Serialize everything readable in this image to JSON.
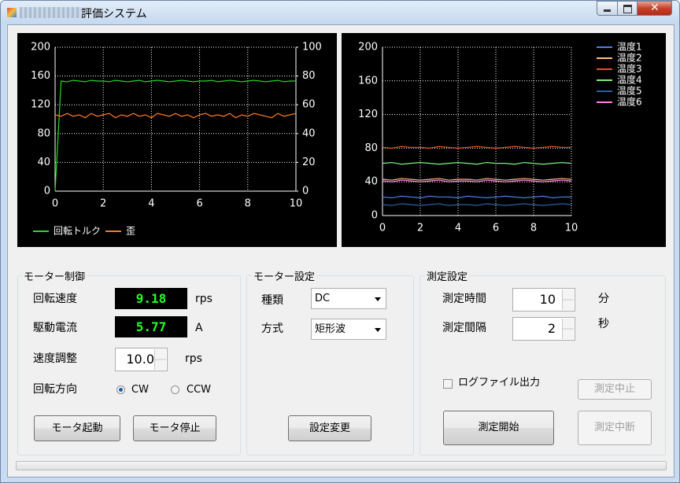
{
  "window": {
    "title": "評価システム"
  },
  "chart_data": [
    {
      "type": "line",
      "legend": "bottom",
      "grid": true,
      "x": [
        0,
        0.25,
        0.5,
        0.75,
        1,
        1.25,
        1.5,
        1.75,
        2,
        2.25,
        2.5,
        2.75,
        3,
        3.25,
        3.5,
        3.75,
        4,
        4.25,
        4.5,
        4.75,
        5,
        5.25,
        5.5,
        5.75,
        6,
        6.25,
        6.5,
        6.75,
        7,
        7.25,
        7.5,
        7.75,
        8,
        8.25,
        8.5,
        8.75,
        9,
        9.25,
        9.5,
        9.75,
        10
      ],
      "xlim": [
        0,
        10
      ],
      "xticks": [
        0,
        2,
        4,
        6,
        8,
        10
      ],
      "ylim": [
        0,
        200
      ],
      "yticks": [
        0,
        40,
        80,
        120,
        160,
        200
      ],
      "y2lim": [
        0,
        100
      ],
      "y2ticks": [
        0,
        20,
        40,
        60,
        80,
        100
      ],
      "series": [
        {
          "name": "回転トルク",
          "color": "#22dd22",
          "values": [
            0,
            153,
            152,
            154,
            153,
            152,
            154,
            153,
            153,
            152,
            154,
            153,
            152,
            153,
            154,
            152,
            153,
            154,
            153,
            152,
            153,
            154,
            153,
            152,
            153,
            153,
            154,
            152,
            153,
            154,
            153,
            152,
            153,
            154,
            153,
            152,
            153,
            154,
            152,
            153,
            153
          ]
        },
        {
          "name": "歪",
          "color": "#ff7a1a",
          "axis": "y2",
          "values": [
            53,
            52,
            54,
            52,
            53,
            51,
            54,
            52,
            53,
            54,
            51,
            53,
            52,
            54,
            52,
            53,
            51,
            54,
            53,
            52,
            54,
            52,
            53,
            51,
            53,
            54,
            52,
            53,
            52,
            54,
            51,
            53,
            52,
            54,
            53,
            52,
            51,
            54,
            52,
            53,
            54
          ]
        }
      ]
    },
    {
      "type": "line",
      "legend": "top-right",
      "grid": true,
      "x": [
        0,
        0.5,
        1,
        1.5,
        2,
        2.5,
        3,
        3.5,
        4,
        4.5,
        5,
        5.5,
        6,
        6.5,
        7,
        7.5,
        8,
        8.5,
        9,
        9.5,
        10
      ],
      "xlim": [
        0,
        10
      ],
      "xticks": [
        0,
        2,
        4,
        6,
        8,
        10
      ],
      "ylim": [
        0,
        200
      ],
      "yticks": [
        0,
        40,
        80,
        120,
        160,
        200
      ],
      "series": [
        {
          "name": "温度1",
          "color": "#4d7fe8",
          "values": [
            22,
            21,
            23,
            22,
            21,
            23,
            22,
            22,
            21,
            23,
            22,
            21,
            22,
            23,
            22,
            21,
            22,
            23,
            21,
            22,
            22
          ]
        },
        {
          "name": "温度2",
          "color": "#ffc080",
          "values": [
            43,
            42,
            44,
            43,
            42,
            43,
            44,
            42,
            43,
            43,
            42,
            44,
            43,
            42,
            43,
            44,
            43,
            42,
            43,
            44,
            43
          ]
        },
        {
          "name": "温度3",
          "color": "#e8501e",
          "values": [
            81,
            80,
            82,
            81,
            81,
            80,
            82,
            81,
            80,
            81,
            82,
            81,
            80,
            81,
            82,
            81,
            80,
            81,
            82,
            81,
            81
          ]
        },
        {
          "name": "温度4",
          "color": "#80ee80",
          "values": [
            62,
            63,
            61,
            62,
            63,
            62,
            61,
            62,
            63,
            62,
            61,
            63,
            62,
            62,
            61,
            63,
            62,
            61,
            62,
            63,
            62
          ]
        },
        {
          "name": "温度5",
          "color": "#2a5f9e",
          "values": [
            13,
            12,
            14,
            13,
            12,
            13,
            14,
            12,
            13,
            13,
            12,
            14,
            13,
            12,
            13,
            14,
            13,
            12,
            13,
            14,
            13
          ]
        },
        {
          "name": "温度6",
          "color": "#ff80f0",
          "values": [
            41,
            40,
            42,
            41,
            40,
            41,
            42,
            40,
            41,
            41,
            40,
            42,
            41,
            40,
            41,
            42,
            41,
            40,
            41,
            42,
            41
          ]
        }
      ]
    }
  ],
  "motor_control": {
    "title": "モーター制御",
    "speed_label": "回転速度",
    "speed_value": "9.18",
    "speed_unit": "rps",
    "current_label": "駆動電流",
    "current_value": "5.77",
    "current_unit": "A",
    "adjust_label": "速度調整",
    "adjust_value": "10.0",
    "adjust_unit": "rps",
    "direction_label": "回転方向",
    "direction_options": [
      "CW",
      "CCW"
    ],
    "start_button": "モータ起動",
    "stop_button": "モータ停止"
  },
  "motor_settings": {
    "title": "モーター設定",
    "type_label": "種類",
    "type_value": "DC",
    "mode_label": "方式",
    "mode_value": "矩形波",
    "apply_button": "設定変更"
  },
  "measurement_settings": {
    "title": "測定設定",
    "time_label": "測定時間",
    "time_value": "10",
    "time_unit": "分",
    "interval_label": "測定間隔",
    "interval_value": "2",
    "interval_unit": "秒",
    "log_checkbox": "ログファイル出力",
    "abort_button": "測定中止",
    "start_button": "測定開始",
    "pause_button": "測定中断"
  }
}
